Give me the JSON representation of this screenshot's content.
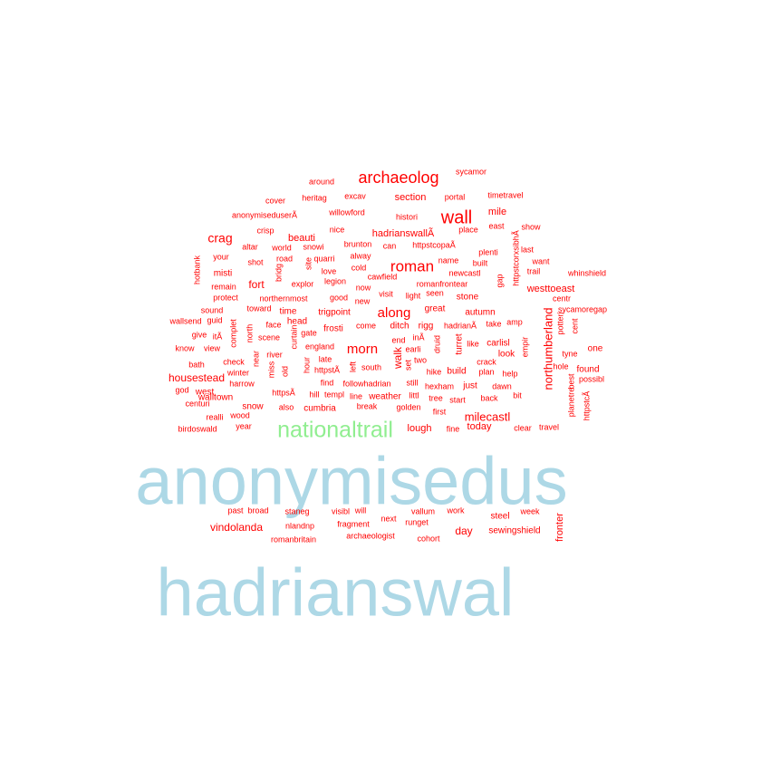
{
  "chart_data": {
    "type": "wordcloud",
    "title": "",
    "color_by_frequency": {
      "highest": "#add8e6",
      "second": "#90ee90",
      "rest": "#ff0000"
    },
    "words": [
      {
        "text": "hadrianswal",
        "size": 44,
        "tier": "highest"
      },
      {
        "text": "anonymisedus",
        "size": 40,
        "tier": "highest"
      },
      {
        "text": "nationaltrail",
        "size": 13,
        "tier": "second"
      },
      {
        "text": "wall",
        "size": 9,
        "tier": "rest"
      },
      {
        "text": "archaeolog",
        "size": 9,
        "tier": "rest"
      },
      {
        "text": "roman",
        "size": 9,
        "tier": "rest"
      },
      {
        "text": "morn",
        "size": 8,
        "tier": "rest"
      },
      {
        "text": "along",
        "size": 8,
        "tier": "rest"
      },
      {
        "text": "northumberland",
        "size": 7,
        "tier": "rest"
      },
      {
        "text": "crag",
        "size": 7,
        "tier": "rest"
      },
      {
        "text": "milecastl",
        "size": 6,
        "tier": "rest"
      },
      {
        "text": "housestead",
        "size": 6,
        "tier": "rest"
      },
      {
        "text": "vindolanda",
        "size": 6,
        "tier": "rest"
      },
      {
        "text": "walk",
        "size": 6,
        "tier": "rest"
      },
      {
        "text": "day",
        "size": 6,
        "tier": "rest"
      },
      {
        "text": "fort",
        "size": 6,
        "tier": "rest"
      },
      {
        "text": "hadrianswallÃ",
        "size": 5,
        "tier": "rest"
      },
      {
        "text": "beauti",
        "size": 5,
        "tier": "rest"
      },
      {
        "text": "section",
        "size": 5,
        "tier": "rest"
      },
      {
        "text": "mile",
        "size": 5,
        "tier": "rest"
      },
      {
        "text": "westtoeast",
        "size": 5,
        "tier": "rest"
      },
      {
        "text": "today",
        "size": 5,
        "tier": "rest"
      },
      {
        "text": "lough",
        "size": 5,
        "tier": "rest"
      },
      {
        "text": "fronter",
        "size": 5,
        "tier": "rest"
      },
      {
        "text": "cumbria",
        "size": 4,
        "tier": "rest"
      },
      {
        "text": "frosti",
        "size": 4,
        "tier": "rest"
      },
      {
        "text": "trigpoint",
        "size": 4,
        "tier": "rest"
      },
      {
        "text": "carlisl",
        "size": 4,
        "tier": "rest"
      },
      {
        "text": "stone",
        "size": 4,
        "tier": "rest"
      },
      {
        "text": "autumn",
        "size": 4,
        "tier": "rest"
      },
      {
        "text": "head",
        "size": 4,
        "tier": "rest"
      },
      {
        "text": "snow",
        "size": 4,
        "tier": "rest"
      },
      {
        "text": "steel",
        "size": 4,
        "tier": "rest"
      },
      {
        "text": "sewingshield",
        "size": 4,
        "tier": "rest"
      },
      {
        "text": "walltown",
        "size": 4,
        "tier": "rest"
      },
      {
        "text": "rigg",
        "size": 4,
        "tier": "rest"
      },
      {
        "text": "ditch",
        "size": 4,
        "tier": "rest"
      },
      {
        "text": "great",
        "size": 4,
        "tier": "rest"
      },
      {
        "text": "time",
        "size": 4,
        "tier": "rest"
      },
      {
        "text": "found",
        "size": 4,
        "tier": "rest"
      },
      {
        "text": "one",
        "size": 4,
        "tier": "rest"
      },
      {
        "text": "look",
        "size": 4,
        "tier": "rest"
      },
      {
        "text": "build",
        "size": 4,
        "tier": "rest"
      },
      {
        "text": "just",
        "size": 4,
        "tier": "rest"
      },
      {
        "text": "weather",
        "size": 4,
        "tier": "rest"
      },
      {
        "text": "west",
        "size": 4,
        "tier": "rest"
      },
      {
        "text": "misti",
        "size": 4,
        "tier": "rest"
      },
      {
        "text": "turret",
        "size": 4,
        "tier": "rest"
      },
      {
        "text": "sycamor",
        "size": 3,
        "tier": "rest"
      },
      {
        "text": "around",
        "size": 3,
        "tier": "rest"
      },
      {
        "text": "timetravel",
        "size": 3,
        "tier": "rest"
      },
      {
        "text": "portal",
        "size": 3,
        "tier": "rest"
      },
      {
        "text": "excav",
        "size": 3,
        "tier": "rest"
      },
      {
        "text": "heritag",
        "size": 3,
        "tier": "rest"
      },
      {
        "text": "cover",
        "size": 3,
        "tier": "rest"
      },
      {
        "text": "willowford",
        "size": 3,
        "tier": "rest"
      },
      {
        "text": "anonymiseduserÃ",
        "size": 3,
        "tier": "rest"
      },
      {
        "text": "histori",
        "size": 3,
        "tier": "rest"
      },
      {
        "text": "east",
        "size": 3,
        "tier": "rest"
      },
      {
        "text": "show",
        "size": 3,
        "tier": "rest"
      },
      {
        "text": "place",
        "size": 3,
        "tier": "rest"
      },
      {
        "text": "crisp",
        "size": 3,
        "tier": "rest"
      },
      {
        "text": "nice",
        "size": 3,
        "tier": "rest"
      },
      {
        "text": "httpstcopaÃ",
        "size": 3,
        "tier": "rest"
      },
      {
        "text": "snowi",
        "size": 3,
        "tier": "rest"
      },
      {
        "text": "brunton",
        "size": 3,
        "tier": "rest"
      },
      {
        "text": "can",
        "size": 3,
        "tier": "rest"
      },
      {
        "text": "altar",
        "size": 3,
        "tier": "rest"
      },
      {
        "text": "world",
        "size": 3,
        "tier": "rest"
      },
      {
        "text": "plenti",
        "size": 3,
        "tier": "rest"
      },
      {
        "text": "last",
        "size": 3,
        "tier": "rest"
      },
      {
        "text": "httpstcorxsibhÃ",
        "size": 3,
        "tier": "rest"
      },
      {
        "text": "your",
        "size": 3,
        "tier": "rest"
      },
      {
        "text": "quarri",
        "size": 3,
        "tier": "rest"
      },
      {
        "text": "alway",
        "size": 3,
        "tier": "rest"
      },
      {
        "text": "shot",
        "size": 3,
        "tier": "rest"
      },
      {
        "text": "road",
        "size": 3,
        "tier": "rest"
      },
      {
        "text": "name",
        "size": 3,
        "tier": "rest"
      },
      {
        "text": "built",
        "size": 3,
        "tier": "rest"
      },
      {
        "text": "want",
        "size": 3,
        "tier": "rest"
      },
      {
        "text": "site",
        "size": 3,
        "tier": "rest"
      },
      {
        "text": "cold",
        "size": 3,
        "tier": "rest"
      },
      {
        "text": "newcastl",
        "size": 3,
        "tier": "rest"
      },
      {
        "text": "trail",
        "size": 3,
        "tier": "rest"
      },
      {
        "text": "whinshield",
        "size": 3,
        "tier": "rest"
      },
      {
        "text": "hotbank",
        "size": 3,
        "tier": "rest"
      },
      {
        "text": "bridg",
        "size": 3,
        "tier": "rest"
      },
      {
        "text": "love",
        "size": 3,
        "tier": "rest"
      },
      {
        "text": "cawfield",
        "size": 3,
        "tier": "rest"
      },
      {
        "text": "gap",
        "size": 3,
        "tier": "rest"
      },
      {
        "text": "explor",
        "size": 3,
        "tier": "rest"
      },
      {
        "text": "legion",
        "size": 3,
        "tier": "rest"
      },
      {
        "text": "now",
        "size": 3,
        "tier": "rest"
      },
      {
        "text": "romanfrontear",
        "size": 3,
        "tier": "rest"
      },
      {
        "text": "remain",
        "size": 3,
        "tier": "rest"
      },
      {
        "text": "visit",
        "size": 3,
        "tier": "rest"
      },
      {
        "text": "light",
        "size": 3,
        "tier": "rest"
      },
      {
        "text": "seen",
        "size": 3,
        "tier": "rest"
      },
      {
        "text": "protect",
        "size": 3,
        "tier": "rest"
      },
      {
        "text": "northernmost",
        "size": 3,
        "tier": "rest"
      },
      {
        "text": "good",
        "size": 3,
        "tier": "rest"
      },
      {
        "text": "new",
        "size": 3,
        "tier": "rest"
      },
      {
        "text": "centr",
        "size": 3,
        "tier": "rest"
      },
      {
        "text": "sound",
        "size": 3,
        "tier": "rest"
      },
      {
        "text": "toward",
        "size": 3,
        "tier": "rest"
      },
      {
        "text": "sycamoregap",
        "size": 3,
        "tier": "rest"
      },
      {
        "text": "wallsend",
        "size": 3,
        "tier": "rest"
      },
      {
        "text": "guid",
        "size": 3,
        "tier": "rest"
      },
      {
        "text": "complet",
        "size": 3,
        "tier": "rest"
      },
      {
        "text": "north",
        "size": 3,
        "tier": "rest"
      },
      {
        "text": "face",
        "size": 3,
        "tier": "rest"
      },
      {
        "text": "curtain",
        "size": 3,
        "tier": "rest"
      },
      {
        "text": "gate",
        "size": 3,
        "tier": "rest"
      },
      {
        "text": "come",
        "size": 3,
        "tier": "rest"
      },
      {
        "text": "hadrianÃ",
        "size": 3,
        "tier": "rest"
      },
      {
        "text": "amp",
        "size": 3,
        "tier": "rest"
      },
      {
        "text": "take",
        "size": 3,
        "tier": "rest"
      },
      {
        "text": "potteri",
        "size": 3,
        "tier": "rest"
      },
      {
        "text": "cent",
        "size": 3,
        "tier": "rest"
      },
      {
        "text": "give",
        "size": 3,
        "tier": "rest"
      },
      {
        "text": "itÃ",
        "size": 3,
        "tier": "rest"
      },
      {
        "text": "scene",
        "size": 3,
        "tier": "rest"
      },
      {
        "text": "end",
        "size": 3,
        "tier": "rest"
      },
      {
        "text": "inÃ",
        "size": 3,
        "tier": "rest"
      },
      {
        "text": "druid",
        "size": 3,
        "tier": "rest"
      },
      {
        "text": "like",
        "size": 3,
        "tier": "rest"
      },
      {
        "text": "empir",
        "size": 3,
        "tier": "rest"
      },
      {
        "text": "know",
        "size": 3,
        "tier": "rest"
      },
      {
        "text": "view",
        "size": 3,
        "tier": "rest"
      },
      {
        "text": "england",
        "size": 3,
        "tier": "rest"
      },
      {
        "text": "earli",
        "size": 3,
        "tier": "rest"
      },
      {
        "text": "tyne",
        "size": 3,
        "tier": "rest"
      },
      {
        "text": "river",
        "size": 3,
        "tier": "rest"
      },
      {
        "text": "late",
        "size": 3,
        "tier": "rest"
      },
      {
        "text": "two",
        "size": 3,
        "tier": "rest"
      },
      {
        "text": "crack",
        "size": 3,
        "tier": "rest"
      },
      {
        "text": "bath",
        "size": 3,
        "tier": "rest"
      },
      {
        "text": "check",
        "size": 3,
        "tier": "rest"
      },
      {
        "text": "near",
        "size": 3,
        "tier": "rest"
      },
      {
        "text": "miss",
        "size": 3,
        "tier": "rest"
      },
      {
        "text": "hour",
        "size": 3,
        "tier": "rest"
      },
      {
        "text": "left",
        "size": 3,
        "tier": "rest"
      },
      {
        "text": "south",
        "size": 3,
        "tier": "rest"
      },
      {
        "text": "hike",
        "size": 3,
        "tier": "rest"
      },
      {
        "text": "plan",
        "size": 3,
        "tier": "rest"
      },
      {
        "text": "hole",
        "size": 3,
        "tier": "rest"
      },
      {
        "text": "winter",
        "size": 3,
        "tier": "rest"
      },
      {
        "text": "old",
        "size": 3,
        "tier": "rest"
      },
      {
        "text": "httpstÃ",
        "size": 3,
        "tier": "rest"
      },
      {
        "text": "set",
        "size": 3,
        "tier": "rest"
      },
      {
        "text": "help",
        "size": 3,
        "tier": "rest"
      },
      {
        "text": "possibl",
        "size": 3,
        "tier": "rest"
      },
      {
        "text": "harrow",
        "size": 3,
        "tier": "rest"
      },
      {
        "text": "find",
        "size": 3,
        "tier": "rest"
      },
      {
        "text": "followhadrian",
        "size": 3,
        "tier": "rest"
      },
      {
        "text": "still",
        "size": 3,
        "tier": "rest"
      },
      {
        "text": "hexham",
        "size": 3,
        "tier": "rest"
      },
      {
        "text": "dawn",
        "size": 3,
        "tier": "rest"
      },
      {
        "text": "best",
        "size": 3,
        "tier": "rest"
      },
      {
        "text": "god",
        "size": 3,
        "tier": "rest"
      },
      {
        "text": "httpsÃ",
        "size": 3,
        "tier": "rest"
      },
      {
        "text": "hill",
        "size": 3,
        "tier": "rest"
      },
      {
        "text": "templ",
        "size": 3,
        "tier": "rest"
      },
      {
        "text": "line",
        "size": 3,
        "tier": "rest"
      },
      {
        "text": "littl",
        "size": 3,
        "tier": "rest"
      },
      {
        "text": "tree",
        "size": 3,
        "tier": "rest"
      },
      {
        "text": "start",
        "size": 3,
        "tier": "rest"
      },
      {
        "text": "back",
        "size": 3,
        "tier": "rest"
      },
      {
        "text": "bit",
        "size": 3,
        "tier": "rest"
      },
      {
        "text": "planetre",
        "size": 3,
        "tier": "rest"
      },
      {
        "text": "httpstcÃ",
        "size": 3,
        "tier": "rest"
      },
      {
        "text": "centuri",
        "size": 3,
        "tier": "rest"
      },
      {
        "text": "also",
        "size": 3,
        "tier": "rest"
      },
      {
        "text": "break",
        "size": 3,
        "tier": "rest"
      },
      {
        "text": "golden",
        "size": 3,
        "tier": "rest"
      },
      {
        "text": "realli",
        "size": 3,
        "tier": "rest"
      },
      {
        "text": "wood",
        "size": 3,
        "tier": "rest"
      },
      {
        "text": "first",
        "size": 3,
        "tier": "rest"
      },
      {
        "text": "birdoswald",
        "size": 3,
        "tier": "rest"
      },
      {
        "text": "year",
        "size": 3,
        "tier": "rest"
      },
      {
        "text": "fine",
        "size": 3,
        "tier": "rest"
      },
      {
        "text": "clear",
        "size": 3,
        "tier": "rest"
      },
      {
        "text": "travel",
        "size": 3,
        "tier": "rest"
      },
      {
        "text": "past",
        "size": 3,
        "tier": "rest"
      },
      {
        "text": "broad",
        "size": 3,
        "tier": "rest"
      },
      {
        "text": "staneg",
        "size": 3,
        "tier": "rest"
      },
      {
        "text": "visibl",
        "size": 3,
        "tier": "rest"
      },
      {
        "text": "will",
        "size": 3,
        "tier": "rest"
      },
      {
        "text": "vallum",
        "size": 3,
        "tier": "rest"
      },
      {
        "text": "work",
        "size": 3,
        "tier": "rest"
      },
      {
        "text": "week",
        "size": 3,
        "tier": "rest"
      },
      {
        "text": "nlandnp",
        "size": 3,
        "tier": "rest"
      },
      {
        "text": "fragment",
        "size": 3,
        "tier": "rest"
      },
      {
        "text": "next",
        "size": 3,
        "tier": "rest"
      },
      {
        "text": "runget",
        "size": 3,
        "tier": "rest"
      },
      {
        "text": "romanbritain",
        "size": 3,
        "tier": "rest"
      },
      {
        "text": "archaeologist",
        "size": 3,
        "tier": "rest"
      },
      {
        "text": "cohort",
        "size": 3,
        "tier": "rest"
      }
    ]
  }
}
